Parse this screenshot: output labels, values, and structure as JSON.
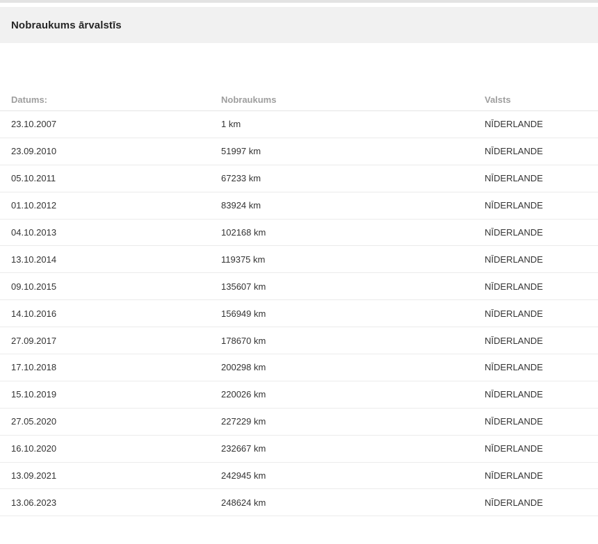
{
  "panel": {
    "title": "Nobraukums ārvalstīs"
  },
  "table": {
    "columns": [
      {
        "key": "date",
        "label": "Datums:"
      },
      {
        "key": "mileage",
        "label": "Nobraukums"
      },
      {
        "key": "country",
        "label": "Valsts"
      }
    ],
    "rows": [
      {
        "date": "23.10.2007",
        "mileage": "1 km",
        "country": "NĪDERLANDE"
      },
      {
        "date": "23.09.2010",
        "mileage": "51997 km",
        "country": "NĪDERLANDE"
      },
      {
        "date": "05.10.2011",
        "mileage": "67233 km",
        "country": "NĪDERLANDE"
      },
      {
        "date": "01.10.2012",
        "mileage": "83924 km",
        "country": "NĪDERLANDE"
      },
      {
        "date": "04.10.2013",
        "mileage": "102168 km",
        "country": "NĪDERLANDE"
      },
      {
        "date": "13.10.2014",
        "mileage": "119375 km",
        "country": "NĪDERLANDE"
      },
      {
        "date": "09.10.2015",
        "mileage": "135607 km",
        "country": "NĪDERLANDE"
      },
      {
        "date": "14.10.2016",
        "mileage": "156949 km",
        "country": "NĪDERLANDE"
      },
      {
        "date": "27.09.2017",
        "mileage": "178670 km",
        "country": "NĪDERLANDE"
      },
      {
        "date": "17.10.2018",
        "mileage": "200298 km",
        "country": "NĪDERLANDE"
      },
      {
        "date": "15.10.2019",
        "mileage": "220026 km",
        "country": "NĪDERLANDE"
      },
      {
        "date": "27.05.2020",
        "mileage": "227229 km",
        "country": "NĪDERLANDE"
      },
      {
        "date": "16.10.2020",
        "mileage": "232667 km",
        "country": "NĪDERLANDE"
      },
      {
        "date": "13.09.2021",
        "mileage": "242945 km",
        "country": "NĪDERLANDE"
      },
      {
        "date": "13.06.2023",
        "mileage": "248624 km",
        "country": "NĪDERLANDE"
      }
    ]
  },
  "colors": {
    "panel_bg": "#f1f1f1",
    "top_strip": "#e3e3e3",
    "divider": "#ebebeb",
    "header_text": "#9e9e9e",
    "body_text": "#333333"
  }
}
